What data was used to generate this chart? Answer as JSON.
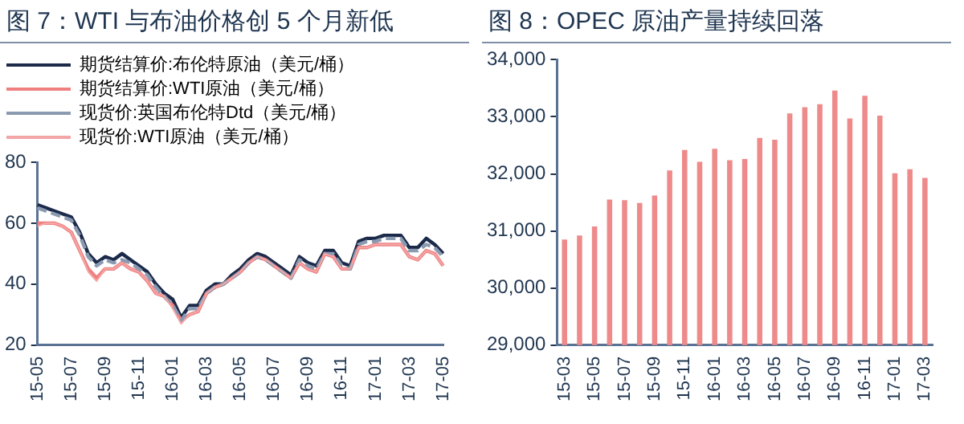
{
  "chart_data": [
    {
      "type": "line",
      "title": "图 7：WTI 与布油价格创 5 个月新低",
      "legend": "top",
      "grid": false,
      "marker": "none",
      "categories": [
        "15-05",
        null,
        null,
        null,
        "15-07",
        null,
        null,
        null,
        "15-09",
        null,
        null,
        null,
        "15-11",
        null,
        null,
        null,
        "16-01",
        null,
        null,
        null,
        "16-03",
        null,
        null,
        null,
        "16-05",
        null,
        null,
        null,
        "16-07",
        null,
        null,
        null,
        "16-09",
        null,
        null,
        null,
        "16-11",
        null,
        null,
        null,
        "17-01",
        null,
        null,
        null,
        "17-03",
        null,
        null,
        null,
        "17-05"
      ],
      "ylim": [
        20,
        80
      ],
      "yticks": [
        20,
        40,
        60,
        80
      ],
      "series": [
        {
          "name": "期货结算价:布伦特原油（美元/桶）",
          "color": "#1c2a4a",
          "line_style": "solid",
          "values": [
            66,
            65,
            64,
            63,
            62,
            57,
            50,
            47,
            49,
            48,
            50,
            48,
            46,
            44,
            40,
            37,
            35,
            29,
            33,
            33,
            38,
            40,
            40,
            43,
            45,
            48,
            50,
            49,
            47,
            45,
            43,
            49,
            47,
            46,
            51,
            51,
            47,
            46,
            54,
            55,
            55,
            56,
            56,
            56,
            52,
            52,
            55,
            53,
            50
          ]
        },
        {
          "name": "期货结算价:WTI原油（美元/桶）",
          "color": "#f08080",
          "line_style": "solid",
          "values": [
            60,
            60,
            60,
            59,
            57,
            51,
            45,
            42,
            45,
            45,
            47,
            45,
            44,
            41,
            37,
            36,
            33,
            28,
            30,
            31,
            37,
            39,
            40,
            42,
            44,
            47,
            49,
            48,
            46,
            44,
            42,
            47,
            45,
            44,
            50,
            49,
            45,
            45,
            52,
            52,
            53,
            53,
            53,
            53,
            49,
            48,
            51,
            50,
            46
          ]
        },
        {
          "name": "现货价:英国布伦特Dtd（美元/桶）",
          "color": "#8a9ab0",
          "line_style": "dashed",
          "values": [
            65,
            64,
            63,
            62,
            61,
            56,
            49,
            46,
            48,
            47,
            48,
            47,
            45,
            43,
            39,
            36,
            33,
            28,
            32,
            32,
            37,
            39,
            40,
            42,
            44,
            47,
            49,
            48,
            46,
            44,
            42,
            48,
            46,
            45,
            50,
            50,
            46,
            45,
            53,
            54,
            54,
            55,
            55,
            55,
            51,
            51,
            53,
            52,
            49
          ]
        },
        {
          "name": "现货价:WTI原油（美元/桶）",
          "color": "#f4a6a6",
          "line_style": "solid",
          "values": [
            59,
            60,
            60,
            59,
            57,
            51,
            44,
            41,
            45,
            45,
            47,
            45,
            44,
            41,
            37,
            36,
            32,
            27,
            30,
            31,
            37,
            39,
            40,
            42,
            44,
            47,
            49,
            48,
            46,
            44,
            42,
            47,
            45,
            44,
            50,
            49,
            45,
            45,
            52,
            52,
            53,
            53,
            53,
            53,
            49,
            48,
            51,
            50,
            46
          ]
        }
      ]
    },
    {
      "type": "bar",
      "title": "图 8：OPEC 原油产量持续回落",
      "legend": false,
      "grid": false,
      "categories": [
        "15-03",
        null,
        "15-05",
        null,
        "15-07",
        null,
        "15-09",
        null,
        "15-11",
        null,
        "16-01",
        null,
        "16-03",
        null,
        "16-05",
        null,
        "16-07",
        null,
        "16-09",
        null,
        "16-11",
        null,
        "17-01",
        null,
        "17-03"
      ],
      "ylim": [
        29000,
        34000
      ],
      "yticks": [
        {
          "value": 29000,
          "label": "29,000"
        },
        {
          "value": 30000,
          "label": "30,000"
        },
        {
          "value": 31000,
          "label": "31,000"
        },
        {
          "value": 32000,
          "label": "32,000"
        },
        {
          "value": 33000,
          "label": "33,000"
        },
        {
          "value": 34000,
          "label": "34,000"
        }
      ],
      "series": [
        {
          "color": "#ee8a8a",
          "values": [
            30850,
            30920,
            31080,
            31550,
            31540,
            31490,
            31620,
            32060,
            32420,
            32210,
            32440,
            32240,
            32260,
            32630,
            32600,
            33060,
            33170,
            33220,
            33460,
            32970,
            33370,
            33020,
            32010,
            32080,
            31930
          ]
        }
      ]
    }
  ]
}
